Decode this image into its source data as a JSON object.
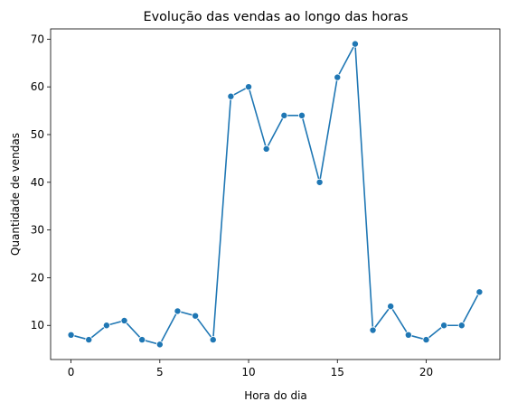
{
  "chart_data": {
    "type": "line",
    "title": "Evolução das vendas ao longo das horas",
    "xlabel": "Hora do dia",
    "ylabel": "Quantidade de vendas",
    "x": [
      0,
      1,
      2,
      3,
      4,
      5,
      6,
      7,
      8,
      9,
      10,
      11,
      12,
      13,
      14,
      15,
      16,
      17,
      18,
      19,
      20,
      21,
      22,
      23
    ],
    "series": [
      {
        "values": [
          8,
          7,
          10,
          11,
          7,
          6,
          13,
          12,
          7,
          58,
          60,
          47,
          54,
          54,
          40,
          62,
          69,
          9,
          14,
          8,
          7,
          10,
          10,
          17
        ]
      }
    ],
    "xticks": [
      "0",
      "5",
      "10",
      "15",
      "20"
    ],
    "yticks": [
      "10",
      "20",
      "30",
      "40",
      "50",
      "60",
      "70"
    ],
    "xlim": [
      -1.15,
      24.15
    ],
    "ylim": [
      2.85,
      72.15
    ],
    "grid": false,
    "markers": true,
    "colors": {
      "line": "#1f77b4"
    }
  }
}
